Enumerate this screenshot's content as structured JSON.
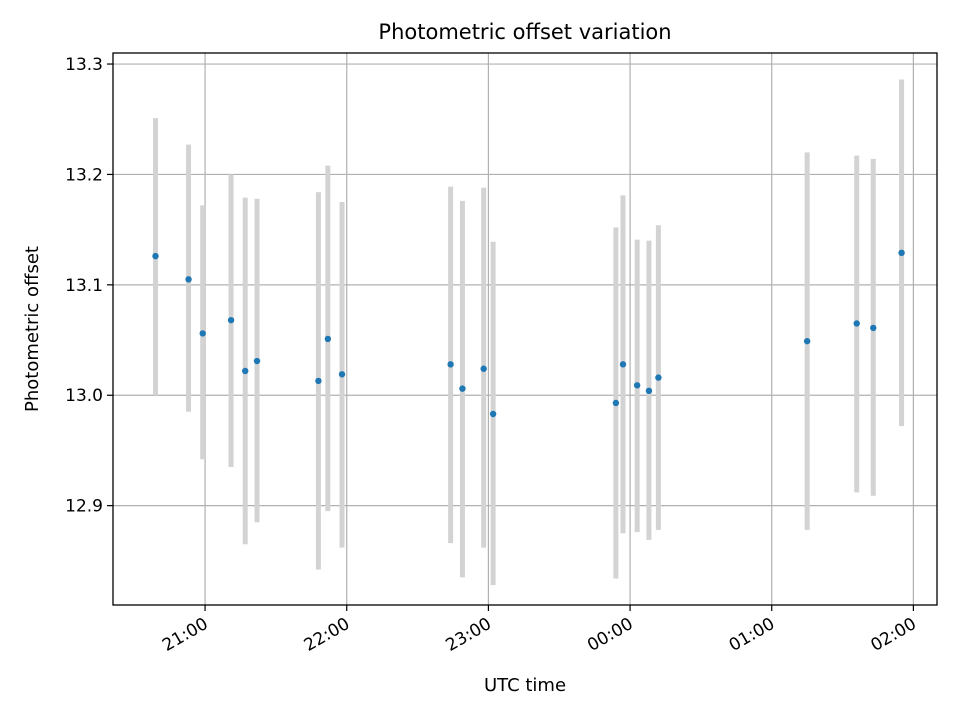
{
  "chart_data": {
    "type": "scatter",
    "title": "Photometric offset variation",
    "xlabel": "UTC time",
    "ylabel": "Photometric offset",
    "x_axis_type": "time",
    "xlim": [
      "20:21",
      "02:10"
    ],
    "ylim": [
      12.81,
      13.31
    ],
    "x_ticks": [
      "21:00",
      "22:00",
      "23:00",
      "00:00",
      "01:00",
      "02:00"
    ],
    "y_ticks": [
      12.9,
      13.0,
      13.1,
      13.2,
      13.3
    ],
    "y_tick_labels": [
      "12.9",
      "13.0",
      "13.1",
      "13.2",
      "13.3"
    ],
    "grid": true,
    "point_color": "#1f77b4",
    "errorbar_color": "#d3d3d3",
    "points": [
      {
        "x": "20:39",
        "y": 13.126,
        "low": 13.0,
        "high": 13.251
      },
      {
        "x": "20:53",
        "y": 13.105,
        "low": 12.985,
        "high": 13.227
      },
      {
        "x": "20:59",
        "y": 13.056,
        "low": 12.942,
        "high": 13.172
      },
      {
        "x": "21:11",
        "y": 13.068,
        "low": 12.935,
        "high": 13.2
      },
      {
        "x": "21:17",
        "y": 13.022,
        "low": 12.865,
        "high": 13.179
      },
      {
        "x": "21:22",
        "y": 13.031,
        "low": 12.885,
        "high": 13.178
      },
      {
        "x": "21:48",
        "y": 13.013,
        "low": 12.842,
        "high": 13.184
      },
      {
        "x": "21:52",
        "y": 13.051,
        "low": 12.895,
        "high": 13.208
      },
      {
        "x": "21:58",
        "y": 13.019,
        "low": 12.862,
        "high": 13.175
      },
      {
        "x": "22:44",
        "y": 13.028,
        "low": 12.866,
        "high": 13.189
      },
      {
        "x": "22:49",
        "y": 13.006,
        "low": 12.835,
        "high": 13.176
      },
      {
        "x": "22:58",
        "y": 13.024,
        "low": 12.862,
        "high": 13.188
      },
      {
        "x": "23:02",
        "y": 12.983,
        "low": 12.828,
        "high": 13.139
      },
      {
        "x": "23:54",
        "y": 12.993,
        "low": 12.834,
        "high": 13.152
      },
      {
        "x": "23:57",
        "y": 13.028,
        "low": 12.875,
        "high": 13.181
      },
      {
        "x": "00:03",
        "y": 13.009,
        "low": 12.876,
        "high": 13.141
      },
      {
        "x": "00:08",
        "y": 13.004,
        "low": 12.869,
        "high": 13.14
      },
      {
        "x": "00:12",
        "y": 13.016,
        "low": 12.878,
        "high": 13.154
      },
      {
        "x": "01:15",
        "y": 13.049,
        "low": 12.878,
        "high": 13.22
      },
      {
        "x": "01:36",
        "y": 13.065,
        "low": 12.912,
        "high": 13.217
      },
      {
        "x": "01:43",
        "y": 13.061,
        "low": 12.909,
        "high": 13.214
      },
      {
        "x": "01:55",
        "y": 13.129,
        "low": 12.972,
        "high": 13.286
      }
    ]
  }
}
